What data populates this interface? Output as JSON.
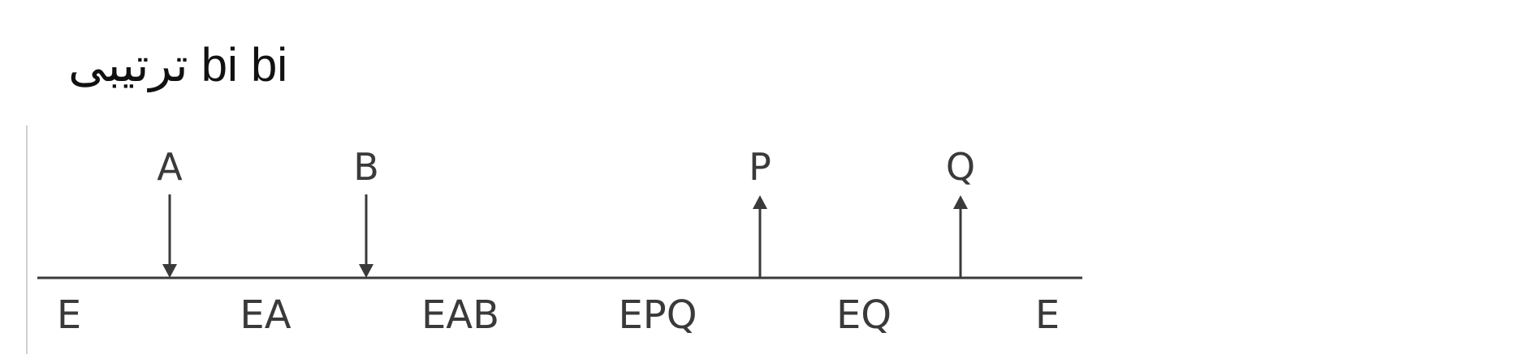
{
  "title": "ترتیبی bi bi",
  "diagram": {
    "line_color": "#3a3a3a",
    "divider_color": "#cfcfcf",
    "events": [
      {
        "label": "A",
        "direction": "down"
      },
      {
        "label": "B",
        "direction": "down"
      },
      {
        "label": "P",
        "direction": "up"
      },
      {
        "label": "Q",
        "direction": "up"
      }
    ],
    "states": [
      "E",
      "EA",
      "EAB",
      "EPQ",
      "EQ",
      "E"
    ]
  }
}
